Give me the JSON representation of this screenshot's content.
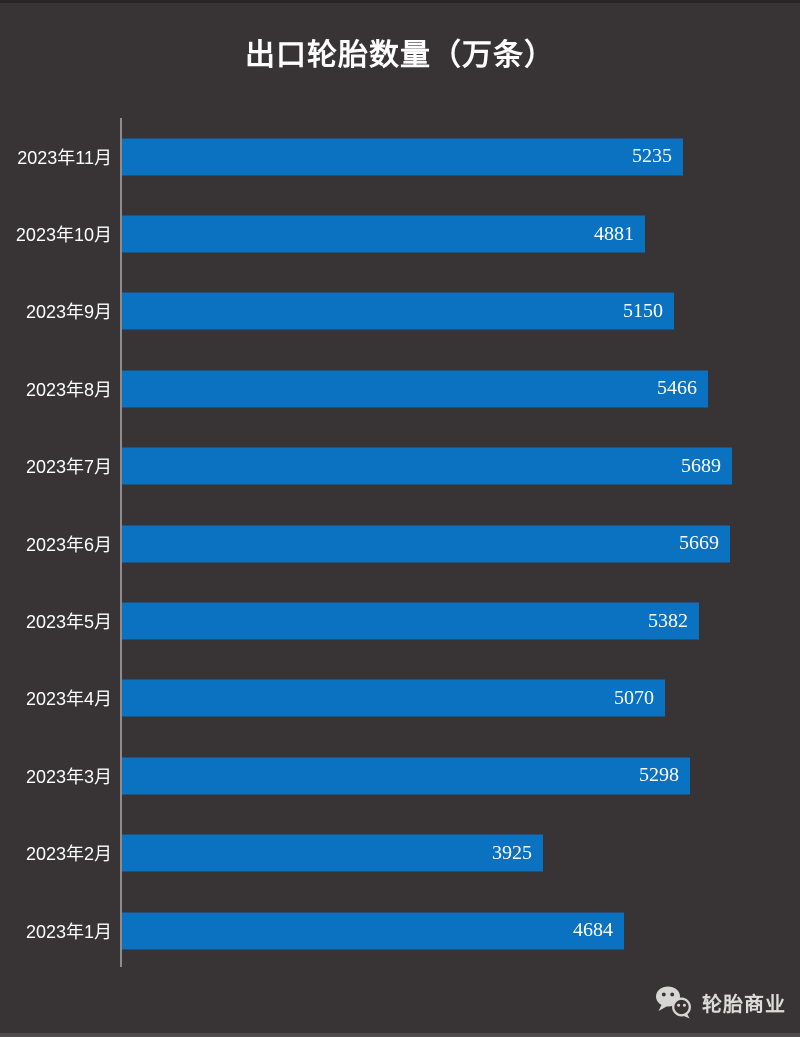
{
  "chart_data": {
    "type": "bar",
    "orientation": "horizontal",
    "title": "出口轮胎数量（万条）",
    "categories": [
      "2023年11月",
      "2023年10月",
      "2023年9月",
      "2023年8月",
      "2023年7月",
      "2023年6月",
      "2023年5月",
      "2023年4月",
      "2023年3月",
      "2023年2月",
      "2023年1月"
    ],
    "values": [
      5235,
      4881,
      5150,
      5466,
      5689,
      5669,
      5382,
      5070,
      5298,
      3925,
      4684
    ],
    "xlabel": "",
    "ylabel": "",
    "xlim": [
      0,
      6000
    ],
    "grid": false,
    "legend": false,
    "value_label_position": "inside-end",
    "bar_color": "#0b71c1",
    "value_label_color": "#ffffff",
    "axis_line_color": "#8f8c8c",
    "background_color": "#383435"
  },
  "footer": {
    "brand": "轮胎商业",
    "icon": "wechat-icon",
    "icon_color": "#d8d5d5"
  }
}
